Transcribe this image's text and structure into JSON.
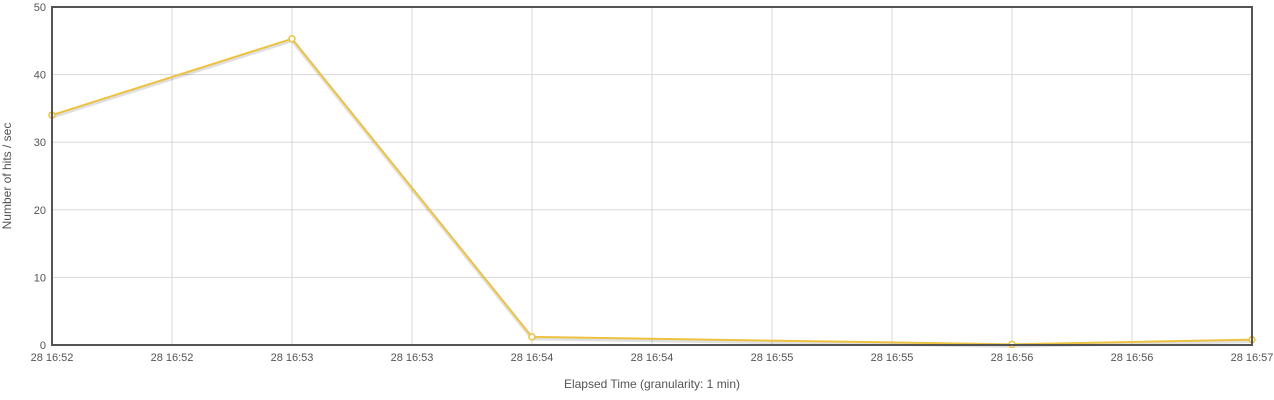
{
  "chart_data": {
    "type": "line",
    "title": "",
    "xlabel": "Elapsed Time (granularity: 1 min)",
    "ylabel": "Number of hits / sec",
    "ylim": [
      0,
      50
    ],
    "yticks": [
      "0",
      "10",
      "20",
      "30",
      "40",
      "50"
    ],
    "xticks": [
      "28 16:52",
      "28 16:52",
      "28 16:53",
      "28 16:53",
      "28 16:54",
      "28 16:54",
      "28 16:55",
      "28 16:55",
      "28 16:56",
      "28 16:56",
      "28 16:57"
    ],
    "xlim": [
      0,
      5
    ],
    "grid": true,
    "legend": "none",
    "series": [
      {
        "color": "#edc240",
        "x": [
          0,
          1,
          2,
          4,
          5
        ],
        "values": [
          34,
          45.3,
          1.2,
          0.1,
          0.8
        ]
      }
    ]
  }
}
